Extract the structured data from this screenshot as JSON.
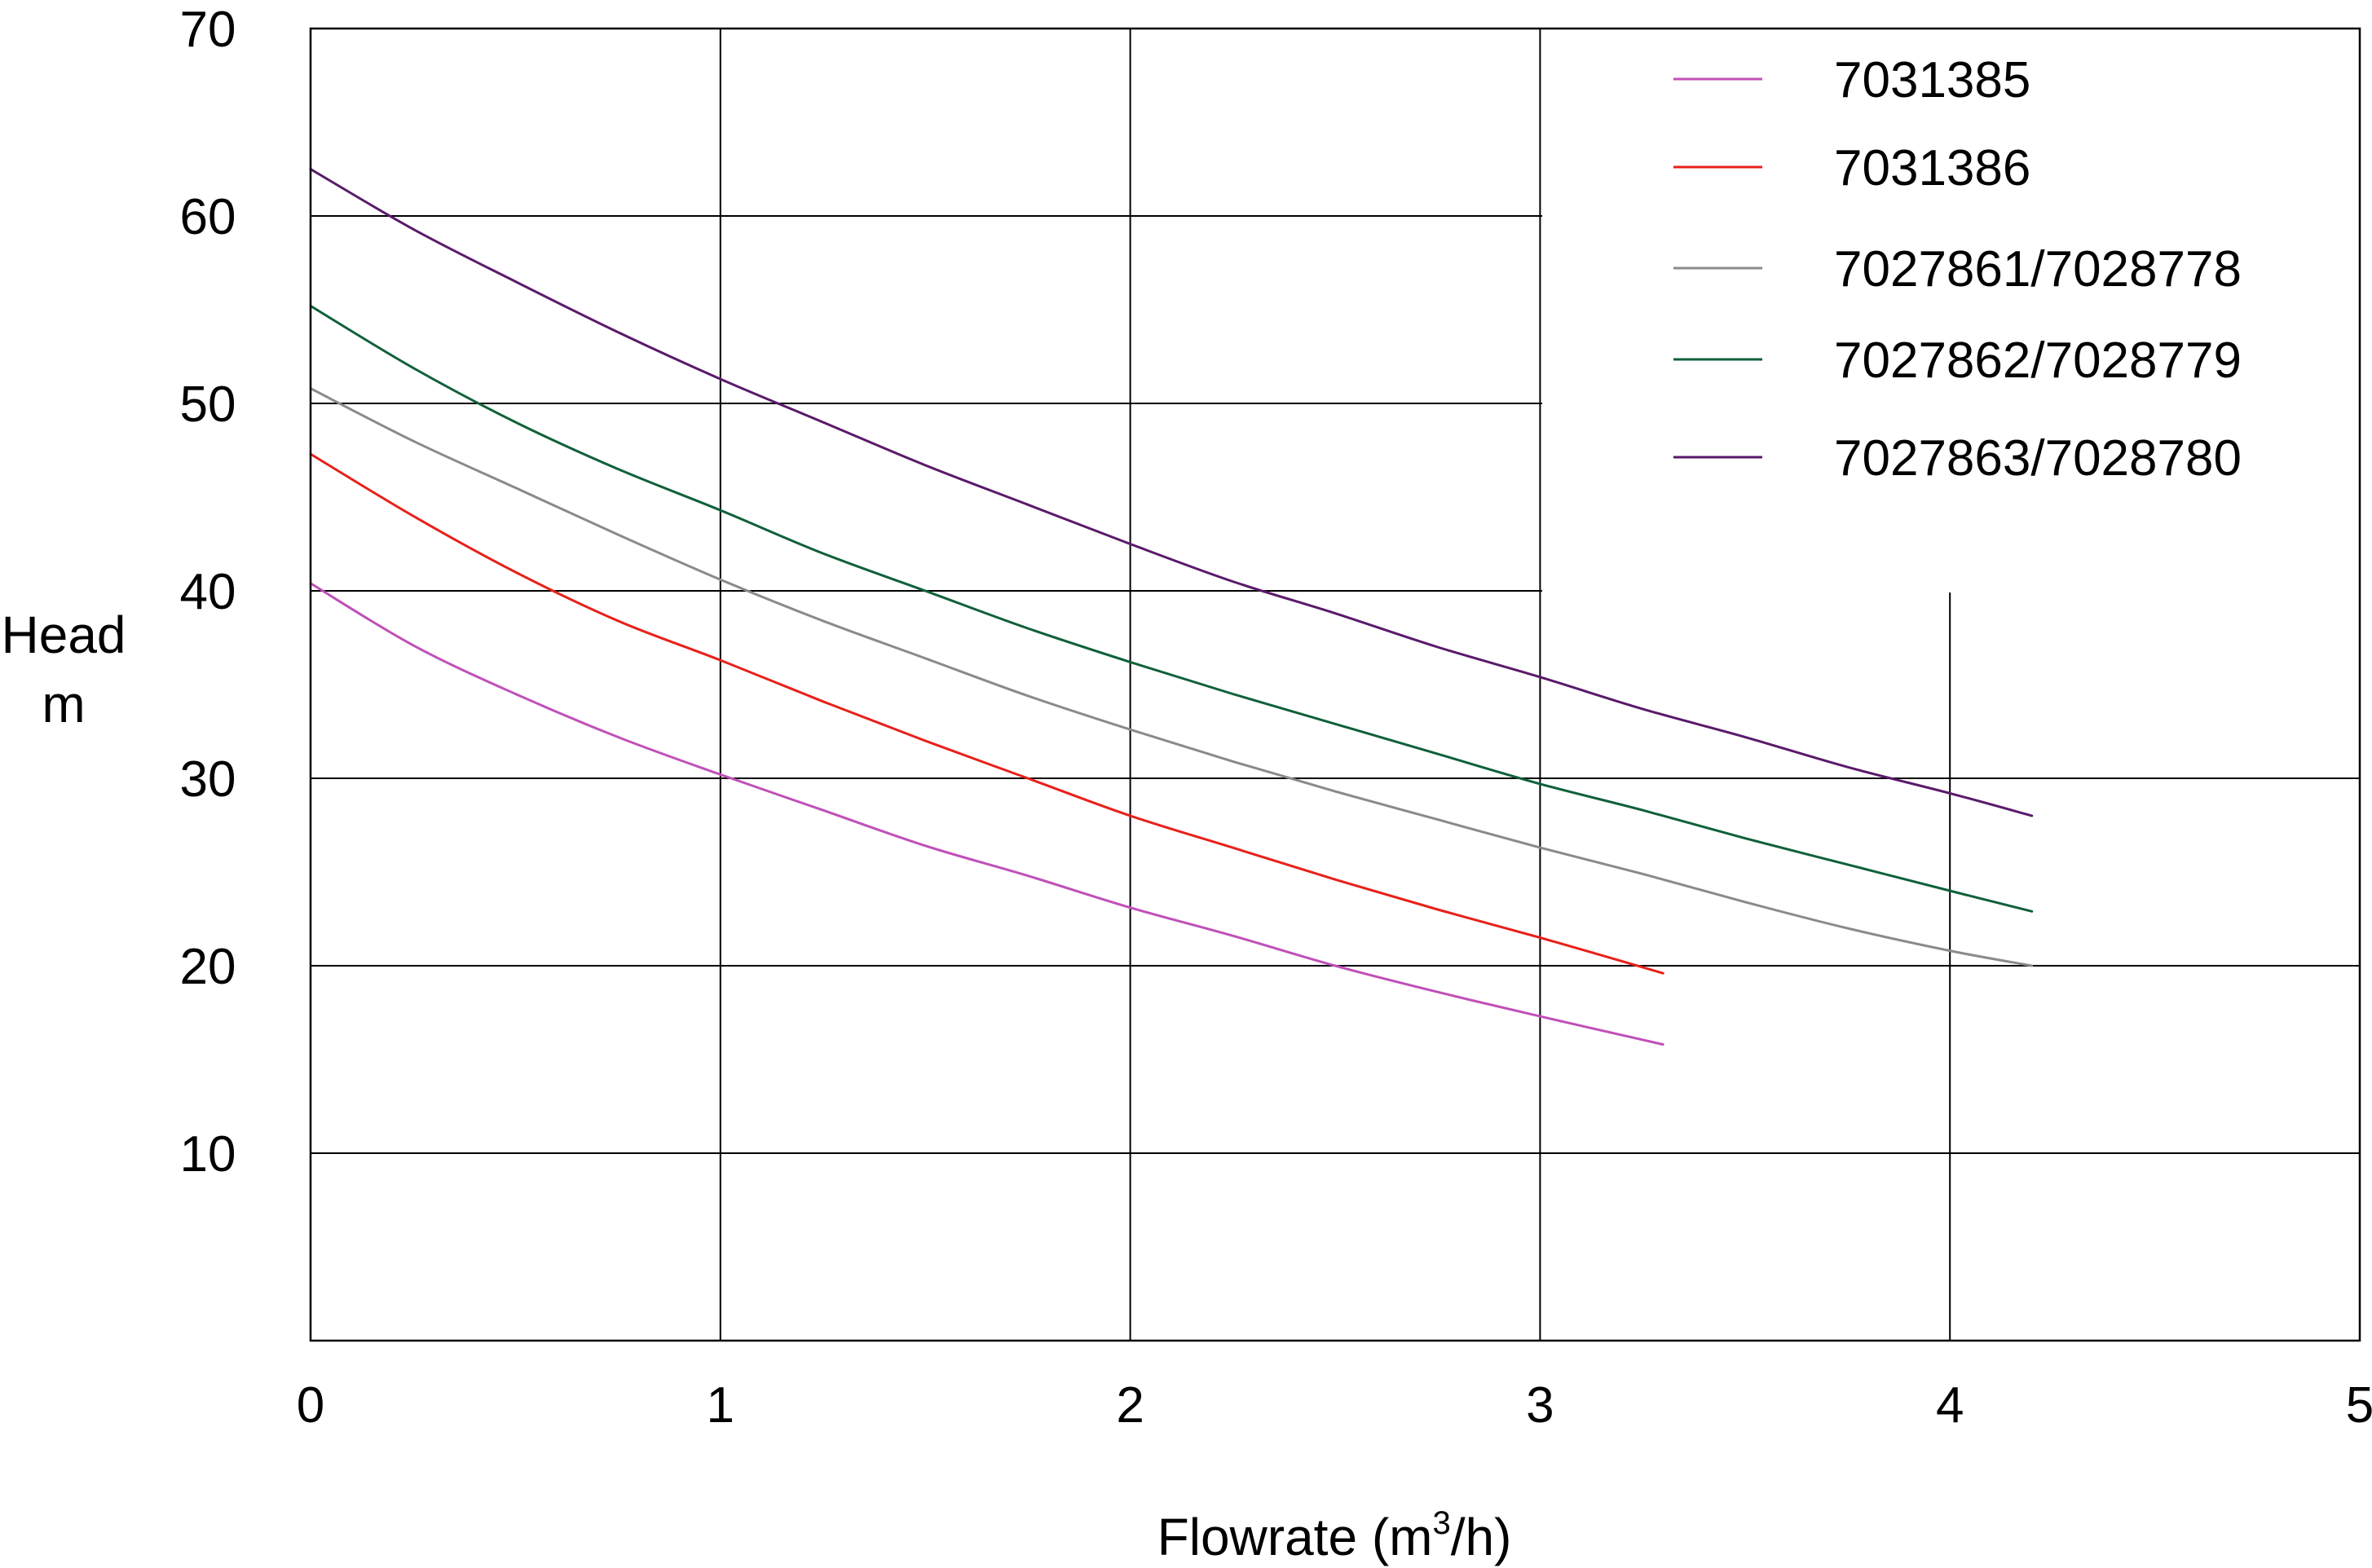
{
  "chart_data": {
    "type": "line",
    "title": "",
    "xlabel": "Flowrate (m",
    "xlabel_sup": "3",
    "xlabel_tail": "/h)",
    "ylabel_line1": "Head",
    "ylabel_line2": "m",
    "xlim": [
      0,
      5
    ],
    "ylim": [
      0,
      70
    ],
    "x_ticks": [
      "0",
      "1",
      "2",
      "3",
      "4",
      "5"
    ],
    "y_ticks": [
      "10",
      "20",
      "30",
      "40",
      "50",
      "60",
      "70"
    ],
    "grid": true,
    "legend_position": "top-right",
    "series": [
      {
        "name": "7031385",
        "color": "#c050b8",
        "x": [
          0,
          0.25,
          0.5,
          0.75,
          1,
          1.25,
          1.5,
          1.75,
          2,
          2.25,
          2.5,
          2.75,
          3,
          3.3
        ],
        "y": [
          40.4,
          37.1,
          34.5,
          32.2,
          30.2,
          28.3,
          26.4,
          24.8,
          23.1,
          21.6,
          20.0,
          18.6,
          17.3,
          15.8
        ]
      },
      {
        "name": "7031386",
        "color": "#e8201a",
        "x": [
          0,
          0.25,
          0.5,
          0.75,
          1,
          1.25,
          1.5,
          1.75,
          2,
          2.25,
          2.5,
          2.75,
          3,
          3.3
        ],
        "y": [
          47.3,
          44.0,
          41.0,
          38.4,
          36.3,
          34.1,
          32.0,
          30.0,
          28.0,
          26.3,
          24.6,
          23.0,
          21.5,
          19.6
        ]
      },
      {
        "name": "7027861/7028778",
        "color": "#8a8a8a",
        "x": [
          0,
          0.25,
          0.5,
          0.75,
          1,
          1.25,
          1.5,
          1.75,
          2,
          2.25,
          2.5,
          2.75,
          3,
          3.25,
          3.5,
          3.75,
          4,
          4.2
        ],
        "y": [
          50.8,
          48.0,
          45.5,
          43.0,
          40.6,
          38.4,
          36.4,
          34.4,
          32.6,
          30.9,
          29.3,
          27.8,
          26.3,
          24.9,
          23.4,
          22.0,
          20.8,
          20.0
        ]
      },
      {
        "name": "7027862/7028779",
        "color": "#10603a",
        "x": [
          0,
          0.25,
          0.5,
          0.75,
          1,
          1.25,
          1.5,
          1.75,
          2,
          2.25,
          2.5,
          2.75,
          3,
          3.25,
          3.5,
          3.75,
          4,
          4.2
        ],
        "y": [
          55.2,
          51.9,
          49.0,
          46.5,
          44.3,
          42.0,
          40.0,
          38.0,
          36.2,
          34.5,
          32.9,
          31.3,
          29.7,
          28.3,
          26.8,
          25.4,
          24.0,
          22.9
        ]
      },
      {
        "name": "7027863/7028780",
        "color": "#5a1a6a",
        "x": [
          0,
          0.25,
          0.5,
          0.75,
          1,
          1.25,
          1.5,
          1.75,
          2,
          2.25,
          2.5,
          2.75,
          3,
          3.25,
          3.5,
          3.75,
          4,
          4.2
        ],
        "y": [
          62.5,
          59.3,
          56.5,
          53.8,
          51.3,
          49.0,
          46.7,
          44.6,
          42.5,
          40.5,
          38.8,
          37.0,
          35.4,
          33.7,
          32.2,
          30.6,
          29.2,
          28.0
        ]
      }
    ]
  }
}
